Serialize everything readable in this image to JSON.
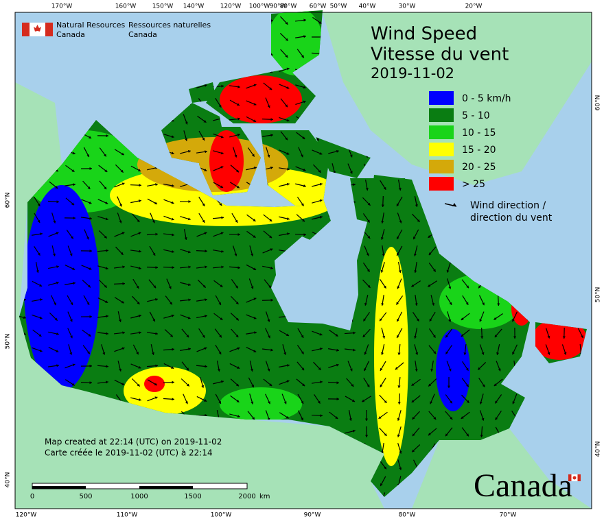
{
  "logo": {
    "en_line1": "Natural Resources",
    "en_line2": "Canada",
    "fr_line1": "Ressources naturelles",
    "fr_line2": "Canada"
  },
  "title": {
    "en": "Wind Speed",
    "fr": "Vitesse du vent",
    "date": "2019-11-02"
  },
  "legend": {
    "items": [
      {
        "label": "0 - 5 km/h",
        "color": "#0000ff"
      },
      {
        "label": "5 - 10",
        "color": "#0a7d12"
      },
      {
        "label": "10 - 15",
        "color": "#19d419"
      },
      {
        "label": "15 - 20",
        "color": "#ffff00"
      },
      {
        "label": "20 - 25",
        "color": "#d4a90a"
      },
      {
        "label": "> 25",
        "color": "#ff0000"
      }
    ],
    "arrow_label_en": "Wind direction /",
    "arrow_label_fr": "direction du vent"
  },
  "note": {
    "en": "Map created at 22:14 (UTC) on 2019-11-02",
    "fr": "Carte créée le 2019-11-02 (UTC) à 22:14"
  },
  "scale_bar": {
    "labels": [
      "0",
      "500",
      "1000",
      "1500",
      "2000"
    ],
    "unit": "km"
  },
  "graticule": {
    "top": [
      "170°W",
      "160°W",
      "150°W",
      "140°W",
      "120°W",
      "100°W",
      "90°W",
      "80°W",
      "60°W",
      "50°W",
      "40°W",
      "30°W",
      "20°W"
    ],
    "bottom": [
      "120°W",
      "110°W",
      "100°W",
      "90°W",
      "80°W",
      "70°W"
    ],
    "left": [
      "60°N",
      "50°N",
      "40°N"
    ],
    "right": [
      "60°N",
      "50°N",
      "40°N"
    ]
  },
  "wordmark": "Canada"
}
